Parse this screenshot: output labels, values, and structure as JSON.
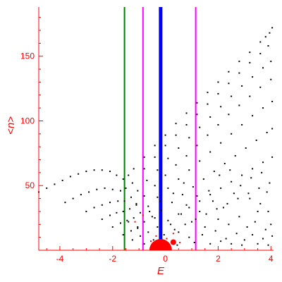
{
  "chart_data": {
    "type": "scatter",
    "title": "",
    "xlabel": "E",
    "ylabel": "<n>",
    "xlim": [
      -4.8,
      4.1
    ],
    "ylim": [
      0,
      188
    ],
    "xticks": [
      -4,
      -2,
      0,
      2,
      4
    ],
    "xtick_labels": [
      "-4",
      "-2",
      "0",
      "2",
      "4"
    ],
    "yticks": [
      50,
      100,
      150
    ],
    "ytick_labels": [
      "50",
      "100",
      "150"
    ],
    "axis_color": "#ff0000",
    "vertical_lines": [
      {
        "x": -1.55,
        "color": "#008000",
        "width": 2
      },
      {
        "x": -0.85,
        "color": "#ff00ff",
        "width": 2
      },
      {
        "x": -0.18,
        "color": "#0000ff",
        "width": 5
      },
      {
        "x": 1.15,
        "color": "#ff00ff",
        "width": 2
      }
    ],
    "series": [
      {
        "points": [
          [
            -4.8,
            45
          ],
          [
            -4.5,
            48
          ],
          [
            -4.2,
            51
          ],
          [
            -3.9,
            54
          ],
          [
            -3.6,
            57
          ],
          [
            -3.3,
            59
          ],
          [
            -3.0,
            61
          ],
          [
            -2.7,
            62
          ],
          [
            -2.4,
            62
          ],
          [
            -2.1,
            61
          ],
          [
            -1.85,
            58
          ],
          [
            -1.6,
            55
          ],
          [
            -1.4,
            58
          ],
          [
            -1.2,
            63
          ],
          [
            -0.8,
            72
          ],
          [
            -0.4,
            81
          ],
          [
            0.0,
            89
          ],
          [
            0.4,
            98
          ],
          [
            0.8,
            106
          ],
          [
            1.2,
            114
          ],
          [
            1.6,
            122
          ],
          [
            2.0,
            130
          ],
          [
            2.4,
            138
          ],
          [
            2.8,
            146
          ],
          [
            3.2,
            153
          ],
          [
            3.6,
            161
          ],
          [
            3.8,
            165
          ],
          [
            3.95,
            168
          ],
          [
            4.05,
            172
          ]
        ],
        "color": "#000000"
      },
      {
        "points": [
          [
            -3.8,
            37
          ],
          [
            -3.5,
            40
          ],
          [
            -3.2,
            43
          ],
          [
            -2.9,
            45
          ],
          [
            -2.6,
            47
          ],
          [
            -2.3,
            48
          ],
          [
            -2.0,
            47
          ],
          [
            -1.7,
            46
          ],
          [
            -1.5,
            48
          ],
          [
            -1.25,
            52
          ],
          [
            -0.8,
            63
          ],
          [
            -0.4,
            72
          ],
          [
            0.0,
            81
          ],
          [
            0.4,
            89
          ],
          [
            0.8,
            97
          ],
          [
            1.2,
            105
          ],
          [
            1.6,
            113
          ],
          [
            2.0,
            121
          ],
          [
            2.4,
            129
          ],
          [
            2.8,
            137
          ],
          [
            3.2,
            145
          ],
          [
            3.6,
            152
          ],
          [
            3.9,
            158
          ]
        ],
        "color": "#000000"
      },
      {
        "points": [
          [
            -3.0,
            30
          ],
          [
            -2.7,
            33
          ],
          [
            -2.4,
            35
          ],
          [
            -2.1,
            37
          ],
          [
            -1.8,
            38
          ],
          [
            -1.55,
            38
          ],
          [
            -1.3,
            41
          ],
          [
            -1.05,
            46
          ],
          [
            -0.7,
            54
          ],
          [
            -0.3,
            62
          ],
          [
            0.1,
            71
          ],
          [
            0.5,
            79
          ],
          [
            0.9,
            87
          ],
          [
            1.3,
            95
          ],
          [
            1.7,
            103
          ],
          [
            2.1,
            111
          ],
          [
            2.5,
            119
          ],
          [
            2.9,
            127
          ],
          [
            3.3,
            134
          ],
          [
            3.7,
            141
          ],
          [
            4.0,
            146
          ]
        ],
        "color": "#000000"
      },
      {
        "points": [
          [
            -2.4,
            24
          ],
          [
            -2.1,
            27
          ],
          [
            -1.85,
            29
          ],
          [
            -1.6,
            30
          ],
          [
            -1.35,
            32
          ],
          [
            -1.1,
            36
          ],
          [
            -0.8,
            42
          ],
          [
            -0.4,
            50
          ],
          [
            0.0,
            58
          ],
          [
            0.4,
            66
          ],
          [
            0.8,
            73
          ],
          [
            1.2,
            81
          ],
          [
            1.6,
            89
          ],
          [
            2.0,
            97
          ],
          [
            2.4,
            105
          ],
          [
            2.8,
            112
          ],
          [
            3.2,
            119
          ],
          [
            3.6,
            126
          ],
          [
            4.0,
            132
          ]
        ],
        "color": "#000000"
      },
      {
        "points": [
          [
            -2.0,
            18
          ],
          [
            -1.7,
            21
          ],
          [
            -1.45,
            23
          ],
          [
            -1.2,
            25
          ],
          [
            -0.95,
            29
          ],
          [
            -0.65,
            34
          ],
          [
            -0.3,
            41
          ],
          [
            0.1,
            48
          ],
          [
            0.5,
            55
          ],
          [
            0.9,
            62
          ],
          [
            1.3,
            69
          ],
          [
            1.7,
            76
          ],
          [
            2.1,
            83
          ],
          [
            2.5,
            90
          ],
          [
            2.9,
            97
          ],
          [
            3.3,
            104
          ],
          [
            3.7,
            110
          ],
          [
            4.05,
            115
          ]
        ],
        "color": "#000000"
      },
      {
        "points": [
          [
            -1.6,
            12
          ],
          [
            -1.3,
            15
          ],
          [
            -1.05,
            18
          ],
          [
            -0.8,
            22
          ],
          [
            -0.5,
            26
          ],
          [
            -0.15,
            31
          ],
          [
            0.25,
            37
          ],
          [
            0.65,
            43
          ],
          [
            1.05,
            49
          ],
          [
            1.45,
            55
          ],
          [
            1.85,
            61
          ],
          [
            2.25,
            67
          ],
          [
            2.65,
            73
          ],
          [
            3.05,
            79
          ],
          [
            3.45,
            85
          ],
          [
            3.85,
            91
          ],
          [
            4.05,
            94
          ]
        ],
        "color": "#000000"
      },
      {
        "points": [
          [
            -1.25,
            8
          ],
          [
            -0.95,
            11
          ],
          [
            -0.65,
            14
          ],
          [
            -0.3,
            18
          ],
          [
            0.1,
            23
          ],
          [
            0.5,
            28
          ],
          [
            0.9,
            33
          ],
          [
            1.3,
            38
          ],
          [
            1.7,
            43
          ],
          [
            2.1,
            48
          ],
          [
            2.5,
            53
          ],
          [
            2.9,
            58
          ],
          [
            3.3,
            63
          ],
          [
            3.7,
            68
          ],
          [
            4.05,
            72
          ]
        ],
        "color": "#000000"
      },
      {
        "points": [
          [
            -0.8,
            5
          ],
          [
            -0.45,
            8
          ],
          [
            -0.05,
            12
          ],
          [
            0.35,
            16
          ],
          [
            0.75,
            20
          ],
          [
            1.15,
            24
          ],
          [
            1.55,
            28
          ],
          [
            1.95,
            32
          ],
          [
            2.35,
            36
          ],
          [
            2.75,
            40
          ],
          [
            3.15,
            44
          ],
          [
            3.55,
            48
          ],
          [
            3.95,
            52
          ]
        ],
        "color": "#000000"
      },
      {
        "points": [
          [
            -0.2,
            38
          ],
          [
            0.3,
            44
          ],
          [
            0.8,
            35
          ],
          [
            1.2,
            42
          ],
          [
            1.8,
            38
          ],
          [
            2.2,
            33
          ],
          [
            2.6,
            44
          ],
          [
            3.2,
            40
          ],
          [
            3.6,
            36
          ],
          [
            3.9,
            30
          ],
          [
            0.6,
            28
          ],
          [
            1.0,
            22
          ],
          [
            1.5,
            18
          ],
          [
            2.0,
            24
          ],
          [
            2.4,
            20
          ],
          [
            2.8,
            26
          ],
          [
            3.1,
            18
          ],
          [
            3.4,
            22
          ],
          [
            3.8,
            16
          ],
          [
            4.0,
            20
          ],
          [
            0.2,
            20
          ],
          [
            0.5,
            14
          ],
          [
            0.9,
            10
          ],
          [
            1.4,
            12
          ],
          [
            1.9,
            15
          ],
          [
            2.3,
            9
          ],
          [
            2.7,
            13
          ],
          [
            3.0,
            8
          ],
          [
            3.3,
            12
          ],
          [
            3.7,
            9
          ],
          [
            4.05,
            11
          ],
          [
            0.05,
            6
          ],
          [
            0.45,
            4
          ],
          [
            1.1,
            6
          ],
          [
            1.7,
            5
          ],
          [
            2.1,
            7
          ],
          [
            2.5,
            5
          ],
          [
            2.9,
            4
          ],
          [
            3.5,
            5
          ],
          [
            3.9,
            4
          ],
          [
            -0.6,
            30
          ],
          [
            -0.4,
            25
          ],
          [
            -1.05,
            17
          ],
          [
            -1.4,
            22
          ],
          [
            -1.1,
            35
          ],
          [
            0.7,
            52
          ],
          [
            1.3,
            30
          ],
          [
            1.65,
            46
          ],
          [
            2.45,
            62
          ],
          [
            3.5,
            30
          ],
          [
            3.85,
            45
          ],
          [
            2.05,
            58
          ],
          [
            2.85,
            50
          ],
          [
            3.25,
            56
          ],
          [
            3.65,
            60
          ]
        ],
        "color": "#000000"
      },
      {
        "points": [
          [
            -0.85,
            27
          ],
          [
            -1.15,
            22
          ],
          [
            -0.35,
            11
          ],
          [
            -0.55,
            7
          ],
          [
            -0.45,
            3
          ],
          [
            0.05,
            9
          ],
          [
            0.3,
            13
          ],
          [
            0.55,
            6
          ],
          [
            -0.25,
            2
          ],
          [
            0.1,
            1
          ]
        ],
        "color": "#ff0000"
      }
    ],
    "highlight_points": [
      {
        "x": -0.18,
        "y": 0,
        "color": "#ff0000"
      },
      {
        "x": 0.3,
        "y": 3,
        "color": "#ff0000"
      }
    ]
  }
}
